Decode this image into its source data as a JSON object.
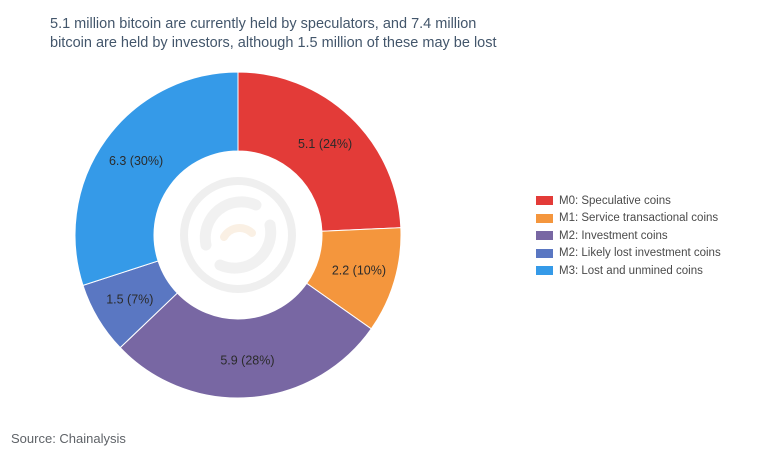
{
  "chart_data": {
    "type": "pie",
    "title_lines": [
      "5.1 million bitcoin are currently held by speculators, and 7.4 million",
      "bitcoin are held by investors, although 1.5 million of these may be lost"
    ],
    "units": "million bitcoin",
    "donut": true,
    "legend_position": "right",
    "slices": [
      {
        "name": "M0: Speculative coins",
        "value": 5.1,
        "percent": 24,
        "label": "5.1 (24%)",
        "color": "#e33b38"
      },
      {
        "name": "M1: Service transactional coins",
        "value": 2.2,
        "percent": 10,
        "label": "2.2 (10%)",
        "color": "#f4963d"
      },
      {
        "name": "M2: Investment coins",
        "value": 5.9,
        "percent": 28,
        "label": "5.9 (28%)",
        "color": "#7867a3"
      },
      {
        "name": "M2: Likely lost investment coins",
        "value": 1.5,
        "percent": 7,
        "label": "1.5 (7%)",
        "color": "#5a77c2"
      },
      {
        "name": "M3: Lost and unmined coins",
        "value": 6.3,
        "percent": 30,
        "label": "6.3 (30%)",
        "color": "#359ae8"
      }
    ]
  },
  "source": "Source: Chainalysis"
}
